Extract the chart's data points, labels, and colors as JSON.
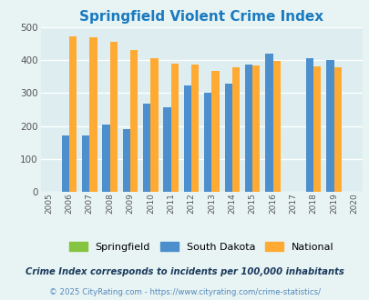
{
  "title": "Springfield Violent Crime Index",
  "years": [
    2005,
    2006,
    2007,
    2008,
    2009,
    2010,
    2011,
    2012,
    2013,
    2014,
    2015,
    2016,
    2017,
    2018,
    2019,
    2020
  ],
  "south_dakota": [
    0,
    172,
    172,
    205,
    190,
    267,
    257,
    322,
    300,
    328,
    385,
    418,
    0,
    405,
    400,
    0
  ],
  "national": [
    0,
    472,
    468,
    455,
    431,
    406,
    389,
    387,
    367,
    377,
    383,
    397,
    0,
    381,
    379,
    0
  ],
  "springfield_color": "#84c441",
  "south_dakota_color": "#4d8fcc",
  "national_color": "#ffaa33",
  "background_color": "#e8f4f4",
  "plot_bg_color": "#deeef0",
  "title_color": "#1a7abf",
  "ylim": [
    0,
    500
  ],
  "yticks": [
    0,
    100,
    200,
    300,
    400,
    500
  ],
  "subtitle": "Crime Index corresponds to incidents per 100,000 inhabitants",
  "footer": "© 2025 CityRating.com - https://www.cityrating.com/crime-statistics/",
  "subtitle_color": "#1a3a5c",
  "footer_color": "#5588bb"
}
